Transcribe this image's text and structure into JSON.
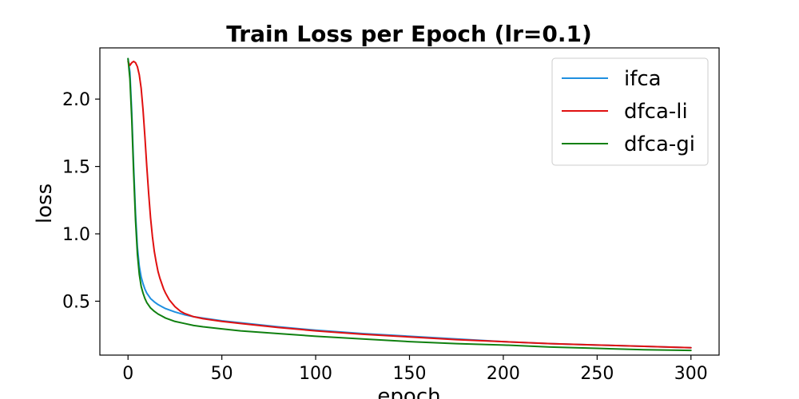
{
  "chart_data": {
    "type": "line",
    "title": "Train Loss per Epoch (lr=0.1)",
    "xlabel": "epoch",
    "ylabel": "loss",
    "xlim": [
      -15,
      315
    ],
    "ylim": [
      0.1,
      2.38
    ],
    "xticks": [
      0,
      50,
      100,
      150,
      200,
      250,
      300
    ],
    "yticks": [
      0.5,
      1.0,
      1.5,
      2.0
    ],
    "grid": false,
    "legend_position": "top-right",
    "series": [
      {
        "name": "ifca",
        "color": "#1f8fe0",
        "x": [
          0,
          1,
          2,
          3,
          4,
          5,
          6,
          7,
          8,
          9,
          10,
          12,
          14,
          16,
          18,
          20,
          25,
          30,
          35,
          40,
          50,
          60,
          80,
          100,
          125,
          150,
          175,
          200,
          225,
          250,
          275,
          300
        ],
        "y": [
          2.3,
          2.2,
          1.9,
          1.5,
          1.15,
          0.9,
          0.76,
          0.68,
          0.63,
          0.59,
          0.56,
          0.52,
          0.495,
          0.475,
          0.46,
          0.445,
          0.42,
          0.4,
          0.385,
          0.375,
          0.355,
          0.34,
          0.31,
          0.285,
          0.26,
          0.24,
          0.22,
          0.2,
          0.185,
          0.175,
          0.165,
          0.155
        ]
      },
      {
        "name": "dfca-li",
        "color": "#e01010",
        "x": [
          0,
          1,
          2,
          3,
          4,
          5,
          6,
          7,
          8,
          9,
          10,
          11,
          12,
          13,
          14,
          15,
          16,
          17,
          18,
          19,
          20,
          22,
          25,
          28,
          30,
          35,
          40,
          50,
          60,
          80,
          100,
          125,
          150,
          175,
          200,
          225,
          250,
          275,
          300
        ],
        "y": [
          2.28,
          2.25,
          2.27,
          2.28,
          2.27,
          2.24,
          2.18,
          2.08,
          1.92,
          1.72,
          1.5,
          1.3,
          1.12,
          0.98,
          0.87,
          0.79,
          0.72,
          0.67,
          0.63,
          0.59,
          0.56,
          0.51,
          0.46,
          0.425,
          0.41,
          0.385,
          0.37,
          0.35,
          0.335,
          0.305,
          0.28,
          0.255,
          0.235,
          0.215,
          0.2,
          0.185,
          0.175,
          0.165,
          0.155
        ]
      },
      {
        "name": "dfca-gi",
        "color": "#108010",
        "x": [
          0,
          1,
          2,
          3,
          4,
          5,
          6,
          7,
          8,
          9,
          10,
          12,
          14,
          16,
          18,
          20,
          25,
          30,
          35,
          40,
          50,
          60,
          80,
          100,
          125,
          150,
          175,
          200,
          225,
          250,
          275,
          300
        ],
        "y": [
          2.3,
          2.15,
          1.85,
          1.45,
          1.1,
          0.85,
          0.7,
          0.61,
          0.56,
          0.52,
          0.49,
          0.45,
          0.425,
          0.405,
          0.39,
          0.375,
          0.35,
          0.335,
          0.32,
          0.31,
          0.295,
          0.28,
          0.26,
          0.24,
          0.22,
          0.2,
          0.185,
          0.175,
          0.16,
          0.15,
          0.14,
          0.135
        ]
      }
    ]
  }
}
